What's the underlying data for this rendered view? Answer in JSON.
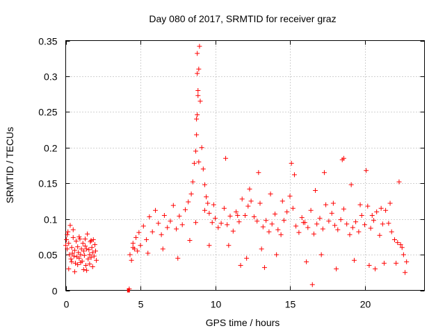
{
  "chart_data": {
    "type": "scatter",
    "title": "Day 080 of 2017, SRMTID for receiver graz",
    "xlabel": "GPS time / hours",
    "ylabel": "SRMTID / TECUs",
    "xlim": [
      0,
      24
    ],
    "ylim": [
      0,
      0.35
    ],
    "x_ticks": [
      0,
      5,
      10,
      15,
      20
    ],
    "x_tick_labels": [
      "0",
      "5",
      "10",
      "15",
      "20"
    ],
    "y_ticks": [
      0,
      0.05,
      0.1,
      0.15,
      0.2,
      0.25,
      0.3,
      0.35
    ],
    "y_tick_labels": [
      "0",
      "0.05",
      "0.1",
      "0.15",
      "0.2",
      "0.25",
      "0.3",
      "0.35"
    ],
    "grid": true,
    "marker": "+",
    "color": "#ff0000",
    "series": [
      {
        "name": "SRMTID",
        "x": [
          0.0,
          0.05,
          0.1,
          0.15,
          0.2,
          0.25,
          0.3,
          0.35,
          0.4,
          0.45,
          0.5,
          0.55,
          0.6,
          0.65,
          0.7,
          0.75,
          0.8,
          0.85,
          0.9,
          0.95,
          1.0,
          1.05,
          1.1,
          1.15,
          1.2,
          1.25,
          1.3,
          1.35,
          1.4,
          1.45,
          1.5,
          1.55,
          1.6,
          1.65,
          1.7,
          1.75,
          1.8,
          1.85,
          1.9,
          1.95,
          2.0,
          2.05,
          0.2,
          0.4,
          0.6,
          0.8,
          1.0,
          1.2,
          1.4,
          1.6,
          1.8,
          0.1,
          0.5,
          0.9,
          1.3,
          1.7,
          4.2,
          4.25,
          4.3,
          4.4,
          4.5,
          4.6,
          4.7,
          4.8,
          4.9,
          5.0,
          5.2,
          5.4,
          5.6,
          5.8,
          6.0,
          6.2,
          6.4,
          6.6,
          6.8,
          7.0,
          7.2,
          7.4,
          7.6,
          7.8,
          8.0,
          8.2,
          8.4,
          8.5,
          8.6,
          8.7,
          8.75,
          8.8,
          8.85,
          8.9,
          8.95,
          9.0,
          9.1,
          9.2,
          9.3,
          9.4,
          9.5,
          9.6,
          9.8,
          10.0,
          10.2,
          10.4,
          10.6,
          10.8,
          11.0,
          11.2,
          11.4,
          11.6,
          11.8,
          12.0,
          12.2,
          12.4,
          12.6,
          12.8,
          13.0,
          13.2,
          13.4,
          13.6,
          13.8,
          14.0,
          14.2,
          14.4,
          14.6,
          14.8,
          15.0,
          15.2,
          15.4,
          15.6,
          15.8,
          16.0,
          16.2,
          16.4,
          16.6,
          16.8,
          17.0,
          17.2,
          17.4,
          17.6,
          17.8,
          18.0,
          18.2,
          18.4,
          18.6,
          18.8,
          19.0,
          19.2,
          19.4,
          19.6,
          19.8,
          20.0,
          20.2,
          20.4,
          20.6,
          20.8,
          21.0,
          21.2,
          21.4,
          21.6,
          21.8,
          22.0,
          22.2,
          22.4,
          22.6,
          22.8,
          4.5,
          5.5,
          6.5,
          7.5,
          8.3,
          8.7,
          8.8,
          8.8,
          8.85,
          8.75,
          8.9,
          9.3,
          9.6,
          9.9,
          10.7,
          11.5,
          12.3,
          12.9,
          13.7,
          14.5,
          15.1,
          15.3,
          15.9,
          16.7,
          17.3,
          17.9,
          18.5,
          18.6,
          19.1,
          19.7,
          20.1,
          20.5,
          21.1,
          21.7,
          22.3,
          22.5,
          10.9,
          12.1,
          13.1,
          14.1,
          16.1,
          17.1,
          18.1,
          19.3,
          20.3,
          21.3,
          22.1,
          11.7,
          13.3,
          16.5,
          20.7,
          22.7
        ],
        "y": [
          0.063,
          0.071,
          0.058,
          0.082,
          0.066,
          0.05,
          0.091,
          0.044,
          0.06,
          0.052,
          0.074,
          0.048,
          0.056,
          0.038,
          0.069,
          0.047,
          0.061,
          0.053,
          0.045,
          0.072,
          0.05,
          0.058,
          0.041,
          0.066,
          0.055,
          0.049,
          0.062,
          0.035,
          0.058,
          0.079,
          0.044,
          0.057,
          0.05,
          0.068,
          0.046,
          0.06,
          0.053,
          0.071,
          0.048,
          0.064,
          0.055,
          0.042,
          0.03,
          0.04,
          0.026,
          0.036,
          0.039,
          0.029,
          0.028,
          0.037,
          0.033,
          0.078,
          0.085,
          0.075,
          0.072,
          0.07,
          0.0,
          0.002,
          0.05,
          0.042,
          0.066,
          0.058,
          0.074,
          0.055,
          0.081,
          0.063,
          0.09,
          0.071,
          0.103,
          0.082,
          0.112,
          0.094,
          0.078,
          0.105,
          0.088,
          0.097,
          0.119,
          0.086,
          0.104,
          0.092,
          0.113,
          0.124,
          0.135,
          0.152,
          0.178,
          0.195,
          0.218,
          0.246,
          0.273,
          0.31,
          0.342,
          0.265,
          0.2,
          0.17,
          0.148,
          0.131,
          0.122,
          0.108,
          0.095,
          0.101,
          0.088,
          0.094,
          0.115,
          0.092,
          0.104,
          0.083,
          0.11,
          0.096,
          0.128,
          0.105,
          0.118,
          0.125,
          0.103,
          0.097,
          0.122,
          0.089,
          0.098,
          0.082,
          0.093,
          0.107,
          0.085,
          0.078,
          0.098,
          0.11,
          0.132,
          0.115,
          0.09,
          0.081,
          0.102,
          0.095,
          0.088,
          0.112,
          0.079,
          0.093,
          0.101,
          0.086,
          0.12,
          0.097,
          0.108,
          0.091,
          0.085,
          0.099,
          0.114,
          0.093,
          0.078,
          0.088,
          0.096,
          0.082,
          0.105,
          0.092,
          0.118,
          0.087,
          0.098,
          0.11,
          0.077,
          0.093,
          0.112,
          0.094,
          0.082,
          0.071,
          0.067,
          0.064,
          0.05,
          0.04,
          0.06,
          0.052,
          0.058,
          0.045,
          0.07,
          0.095,
          0.332,
          0.304,
          0.28,
          0.24,
          0.18,
          0.112,
          0.063,
          0.12,
          0.185,
          0.105,
          0.142,
          0.165,
          0.135,
          0.125,
          0.178,
          0.162,
          0.095,
          0.14,
          0.165,
          0.122,
          0.183,
          0.185,
          0.148,
          0.12,
          0.168,
          0.105,
          0.115,
          0.122,
          0.152,
          0.06,
          0.063,
          0.045,
          0.058,
          0.05,
          0.04,
          0.05,
          0.03,
          0.042,
          0.035,
          0.038,
          0.038,
          0.035,
          0.032,
          0.008,
          0.03,
          0.025
        ]
      }
    ]
  }
}
